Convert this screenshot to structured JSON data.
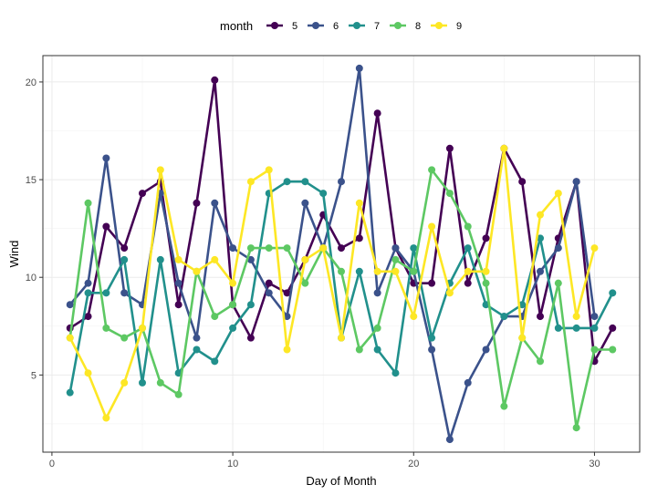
{
  "chart_data": {
    "type": "line",
    "xlabel": "Day of Month",
    "ylabel": "Wind",
    "legend_title": "month",
    "legend_position": "top",
    "grid": true,
    "xlim": [
      -0.5,
      32.5
    ],
    "ylim": [
      1.05,
      21.35
    ],
    "x_ticks": [
      0,
      10,
      20,
      30
    ],
    "y_ticks": [
      5,
      10,
      15,
      20
    ],
    "x_tick_labels": [
      "0",
      "10",
      "20",
      "30"
    ],
    "y_tick_labels": [
      "5",
      "10",
      "15",
      "20"
    ],
    "series": [
      {
        "name": "5",
        "color": "#440154",
        "x": [
          1,
          2,
          3,
          4,
          5,
          6,
          7,
          8,
          9,
          10,
          11,
          12,
          13,
          14,
          15,
          16,
          17,
          18,
          19,
          20,
          21,
          22,
          23,
          24,
          25,
          26,
          27,
          28,
          29,
          30,
          31
        ],
        "y": [
          7.4,
          8.0,
          12.6,
          11.5,
          14.3,
          14.9,
          8.6,
          13.8,
          20.1,
          8.6,
          6.9,
          9.7,
          9.2,
          10.9,
          13.2,
          11.5,
          12.0,
          18.4,
          11.5,
          9.7,
          9.7,
          16.6,
          9.7,
          12.0,
          16.6,
          14.9,
          8.0,
          12.0,
          14.9,
          5.7,
          7.4
        ]
      },
      {
        "name": "6",
        "color": "#3B528B",
        "x": [
          1,
          2,
          3,
          4,
          5,
          6,
          7,
          8,
          9,
          10,
          11,
          12,
          13,
          14,
          15,
          16,
          17,
          18,
          19,
          20,
          21,
          22,
          23,
          24,
          25,
          26,
          27,
          28,
          29,
          30
        ],
        "y": [
          8.6,
          9.7,
          16.1,
          9.2,
          8.6,
          14.3,
          9.7,
          6.9,
          13.8,
          11.5,
          10.9,
          9.2,
          8.0,
          13.8,
          11.5,
          14.9,
          20.7,
          9.2,
          11.5,
          10.3,
          6.3,
          1.7,
          4.6,
          6.3,
          8.0,
          8.0,
          10.3,
          11.5,
          14.9,
          8.0
        ]
      },
      {
        "name": "7",
        "color": "#21908C",
        "x": [
          1,
          2,
          3,
          4,
          5,
          6,
          7,
          8,
          9,
          10,
          11,
          12,
          13,
          14,
          15,
          16,
          17,
          18,
          19,
          20,
          21,
          22,
          23,
          24,
          25,
          26,
          27,
          28,
          29,
          30,
          31
        ],
        "y": [
          4.1,
          9.2,
          9.2,
          10.9,
          4.6,
          10.9,
          5.1,
          6.3,
          5.7,
          7.4,
          8.6,
          14.3,
          14.9,
          14.9,
          14.3,
          6.9,
          10.3,
          6.3,
          5.1,
          11.5,
          6.9,
          9.7,
          11.5,
          8.6,
          8.0,
          8.6,
          12.0,
          7.4,
          7.4,
          7.4,
          9.2
        ]
      },
      {
        "name": "8",
        "color": "#5DC863",
        "x": [
          1,
          2,
          3,
          4,
          5,
          6,
          7,
          8,
          9,
          10,
          11,
          12,
          13,
          14,
          15,
          16,
          17,
          18,
          19,
          20,
          21,
          22,
          23,
          24,
          25,
          26,
          27,
          28,
          29,
          30,
          31
        ],
        "y": [
          6.9,
          13.8,
          7.4,
          6.9,
          7.4,
          4.6,
          4.0,
          10.3,
          8.0,
          8.6,
          11.5,
          11.5,
          11.5,
          9.7,
          11.5,
          10.3,
          6.3,
          7.4,
          10.9,
          10.3,
          15.5,
          14.3,
          12.6,
          9.7,
          3.4,
          6.9,
          5.7,
          9.7,
          2.3,
          6.3,
          6.3
        ]
      },
      {
        "name": "9",
        "color": "#FDE725",
        "x": [
          1,
          2,
          3,
          4,
          5,
          6,
          7,
          8,
          9,
          10,
          11,
          12,
          13,
          14,
          15,
          16,
          17,
          18,
          19,
          20,
          21,
          22,
          23,
          24,
          25,
          26,
          27,
          28,
          29,
          30
        ],
        "y": [
          6.9,
          5.1,
          2.8,
          4.6,
          7.4,
          15.5,
          10.9,
          10.3,
          10.9,
          9.7,
          14.9,
          15.5,
          6.3,
          10.9,
          11.5,
          6.9,
          13.8,
          10.3,
          10.3,
          8.0,
          12.6,
          9.2,
          10.3,
          10.3,
          16.6,
          6.9,
          13.2,
          14.3,
          8.0,
          11.5
        ]
      }
    ]
  }
}
